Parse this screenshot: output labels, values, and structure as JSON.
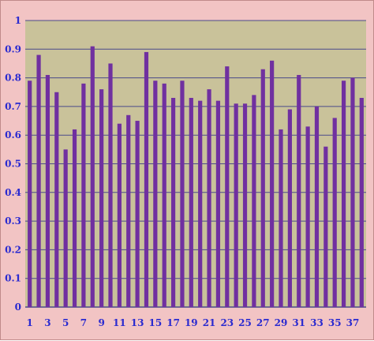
{
  "chart_data": {
    "type": "bar",
    "title": "",
    "xlabel": "",
    "ylabel": "",
    "ylim": [
      0,
      1
    ],
    "yticks": [
      0,
      0.1,
      0.2,
      0.3,
      0.4,
      0.5,
      0.6,
      0.7,
      0.8,
      0.9,
      1
    ],
    "ytick_labels": [
      "0",
      "0.1",
      "0.2",
      "0.3",
      "0.4",
      "0.5",
      "0.6",
      "0.7",
      "0.8",
      "0.9",
      "1"
    ],
    "categories": [
      1,
      2,
      3,
      4,
      5,
      6,
      7,
      8,
      9,
      10,
      11,
      12,
      13,
      14,
      15,
      16,
      17,
      18,
      19,
      20,
      21,
      22,
      23,
      24,
      25,
      26,
      27,
      28,
      29,
      30,
      31,
      32,
      33,
      34,
      35,
      36,
      37,
      38
    ],
    "xtick_labels": [
      "1",
      "3",
      "5",
      "7",
      "9",
      "11",
      "13",
      "15",
      "17",
      "19",
      "21",
      "23",
      "25",
      "27",
      "29",
      "31",
      "33",
      "35",
      "37"
    ],
    "values": [
      0.79,
      0.88,
      0.81,
      0.75,
      0.55,
      0.62,
      0.78,
      0.91,
      0.76,
      0.85,
      0.64,
      0.67,
      0.65,
      0.89,
      0.79,
      0.78,
      0.73,
      0.79,
      0.73,
      0.72,
      0.76,
      0.72,
      0.84,
      0.71,
      0.71,
      0.74,
      0.83,
      0.86,
      0.62,
      0.69,
      0.81,
      0.63,
      0.7,
      0.56,
      0.66,
      0.79,
      0.8,
      0.73
    ],
    "grid": true,
    "legend": "none",
    "colors": {
      "bar": "#7030a0",
      "plot_bg": "#c9c29a",
      "frame_bg": "#f2c4c4",
      "grid": "#4a4a8a",
      "axis_text": "#2a2ad0"
    }
  }
}
